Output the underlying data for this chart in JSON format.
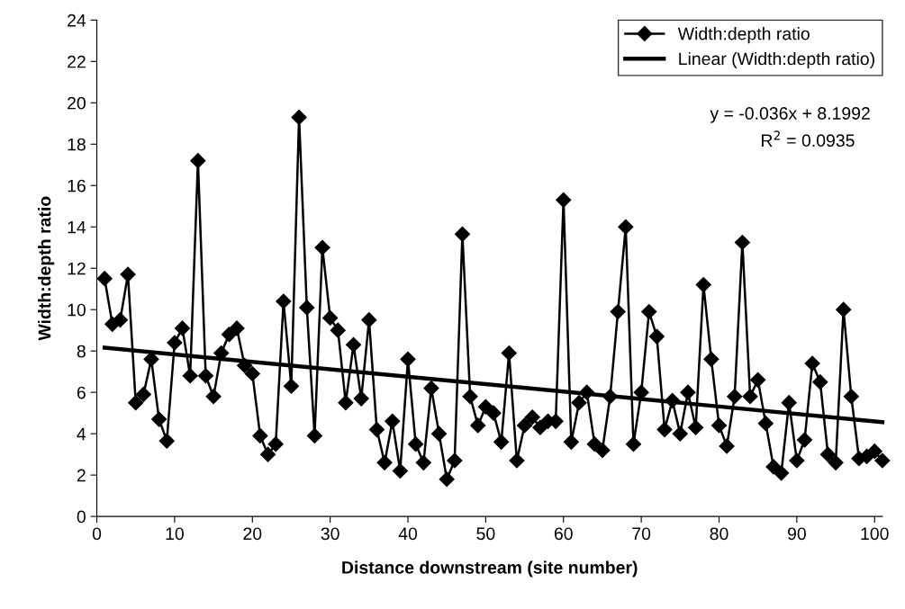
{
  "chart_data": {
    "type": "line",
    "xlabel": "Distance downstream (site number)",
    "ylabel": "Width:depth ratio",
    "annotations": [
      "y = -0.036x + 8.1992",
      "R$^{2}$ = 0.0935"
    ],
    "x": [
      1,
      2,
      3,
      4,
      5,
      6,
      7,
      8,
      9,
      10,
      11,
      12,
      13,
      14,
      15,
      16,
      17,
      18,
      19,
      20,
      21,
      22,
      23,
      24,
      25,
      26,
      27,
      28,
      29,
      30,
      31,
      32,
      33,
      34,
      35,
      36,
      37,
      38,
      39,
      40,
      41,
      42,
      43,
      44,
      45,
      46,
      47,
      48,
      49,
      50,
      51,
      52,
      53,
      54,
      55,
      56,
      57,
      58,
      59,
      60,
      61,
      62,
      63,
      64,
      65,
      66,
      67,
      68,
      69,
      70,
      71,
      72,
      73,
      74,
      75,
      76,
      77,
      78,
      79,
      80,
      81,
      82,
      83,
      84,
      85,
      86,
      87,
      88,
      89,
      90,
      91,
      92,
      93,
      94,
      95,
      96,
      97,
      98,
      99,
      100,
      101
    ],
    "series": [
      {
        "name": "Width:depth ratio",
        "color": "#000000",
        "marker": "diamond",
        "values": [
          11.5,
          9.3,
          9.5,
          11.7,
          5.5,
          5.9,
          7.6,
          4.7,
          3.65,
          8.4,
          9.1,
          6.8,
          17.2,
          6.8,
          5.8,
          7.9,
          8.8,
          9.1,
          7.3,
          6.9,
          3.9,
          3.0,
          3.5,
          10.4,
          6.3,
          19.3,
          10.1,
          3.9,
          13.0,
          9.6,
          9.0,
          5.5,
          8.3,
          5.7,
          9.5,
          4.2,
          2.6,
          4.6,
          2.2,
          7.6,
          3.5,
          2.6,
          6.2,
          4.0,
          1.8,
          2.7,
          13.65,
          5.8,
          4.4,
          5.3,
          5.0,
          3.6,
          7.9,
          2.7,
          4.4,
          4.8,
          4.3,
          4.6,
          4.6,
          15.3,
          3.6,
          5.5,
          6.0,
          3.5,
          3.2,
          5.8,
          9.9,
          14.0,
          3.5,
          6.0,
          9.9,
          8.7,
          4.2,
          5.6,
          4.0,
          6.0,
          4.3,
          11.2,
          7.6,
          4.4,
          3.4,
          5.8,
          13.25,
          5.8,
          6.6,
          4.5,
          2.4,
          2.1,
          5.5,
          2.7,
          3.7,
          7.4,
          6.5,
          3.0,
          2.6,
          10.0,
          5.8,
          2.8,
          2.9,
          3.15,
          2.7
        ]
      },
      {
        "name": "Linear (Width:depth ratio)",
        "color": "#000000",
        "marker": "none",
        "x": [
          1,
          101
        ],
        "values": [
          8.16,
          4.56
        ]
      }
    ],
    "xlim": [
      0,
      101
    ],
    "xticks": [
      0,
      10,
      20,
      30,
      40,
      50,
      60,
      70,
      80,
      90,
      100
    ],
    "ylim": [
      0,
      24
    ],
    "yticks": [
      0,
      2,
      4,
      6,
      8,
      10,
      12,
      14,
      16,
      18,
      20,
      22,
      24
    ],
    "grid": false,
    "legend": "top right"
  }
}
